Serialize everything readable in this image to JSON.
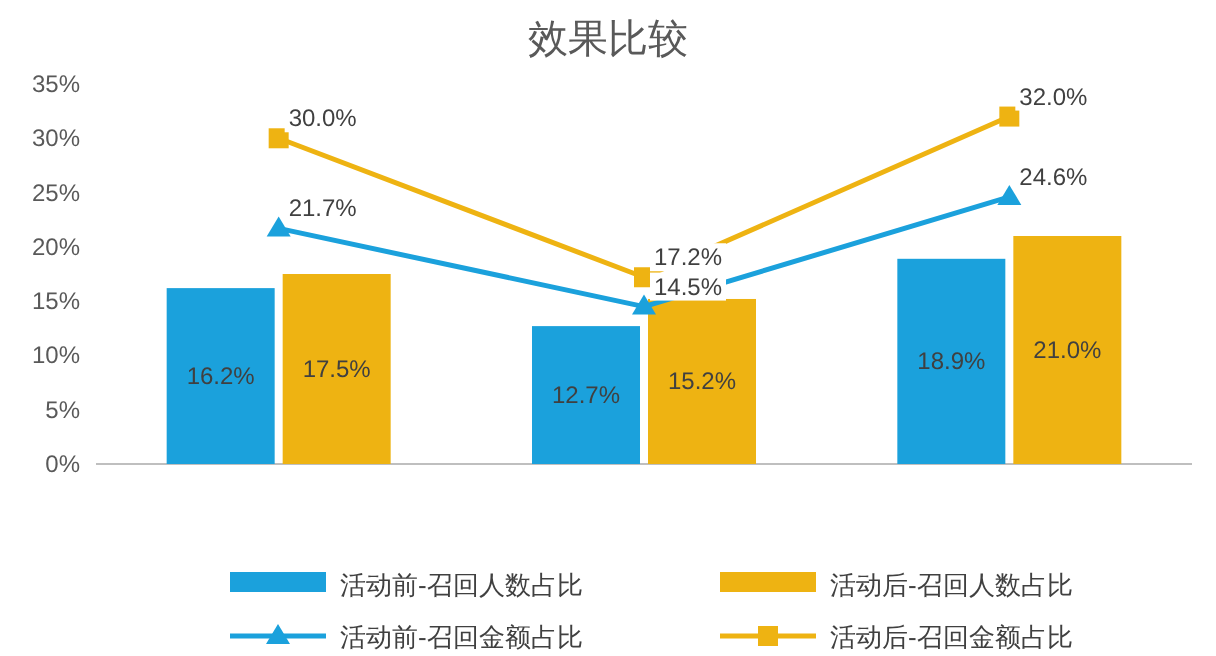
{
  "chart_data": {
    "type": "bar",
    "title": "效果比较",
    "categories": [
      null,
      null,
      null
    ],
    "ylim": [
      0,
      35
    ],
    "yticks": [
      {
        "value": 0,
        "label": "0%"
      },
      {
        "value": 5,
        "label": "5%"
      },
      {
        "value": 10,
        "label": "10%"
      },
      {
        "value": 15,
        "label": "15%"
      },
      {
        "value": 20,
        "label": "20%"
      },
      {
        "value": 25,
        "label": "25%"
      },
      {
        "value": 30,
        "label": "30%"
      },
      {
        "value": 35,
        "label": "35%"
      }
    ],
    "legend": "bottom",
    "grid": false,
    "series": [
      {
        "name": "活动前-召回人数占比",
        "color": "#1ba1dc",
        "values": [
          16.2,
          12.7,
          18.9
        ],
        "value_labels": [
          "16.2%",
          "12.7%",
          "18.9%"
        ]
      },
      {
        "name": "活动后-召回人数占比",
        "color": "#eeb312",
        "values": [
          17.5,
          15.2,
          21.0
        ],
        "value_labels": [
          "17.5%",
          "15.2%",
          "21.0%"
        ]
      },
      {
        "name": "活动前-召回金额占比",
        "type": "line",
        "marker": "triangle",
        "color": "#1ba1dc",
        "values": [
          21.7,
          14.5,
          24.6
        ],
        "value_labels": [
          "21.7%",
          "14.5%",
          "24.6%"
        ]
      },
      {
        "name": "活动后-召回金额占比",
        "type": "line",
        "marker": "square",
        "color": "#eeb312",
        "values": [
          30.0,
          17.2,
          32.0
        ],
        "value_labels": [
          "30.0%",
          "17.2%",
          "32.0%"
        ]
      }
    ]
  }
}
